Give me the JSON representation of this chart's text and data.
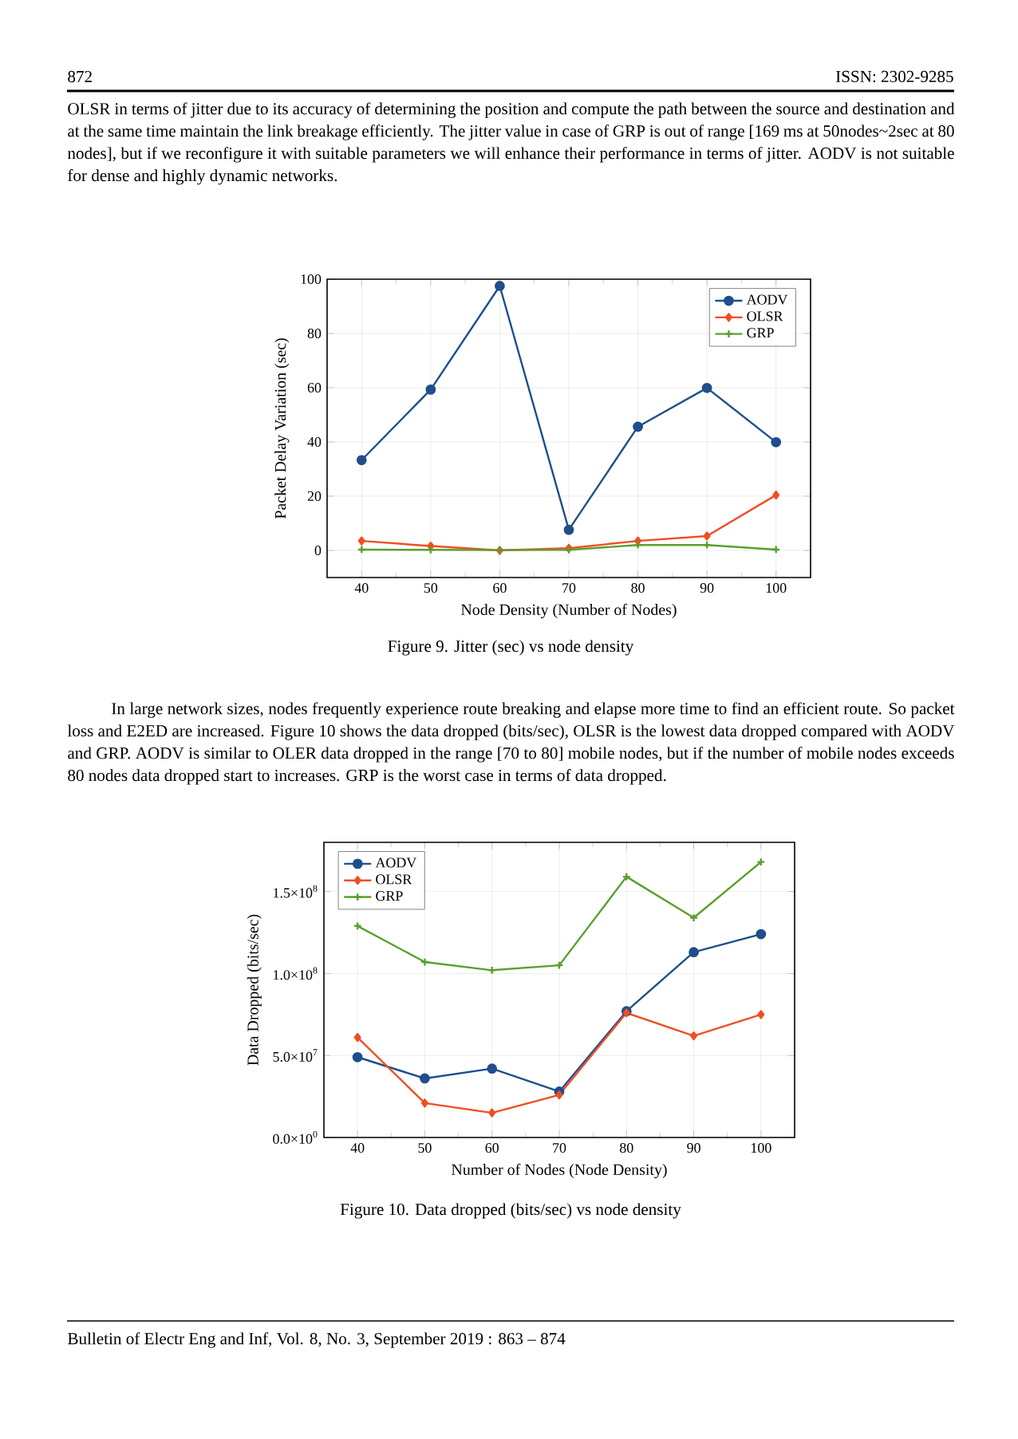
{
  "chart_data": [
    {
      "type": "line",
      "xlabel": "Node Density (Number of Nodes)",
      "ylabel": "Packet Delay Variation (sec)",
      "x": [
        40,
        50,
        60,
        70,
        80,
        90,
        100
      ],
      "series": [
        {
          "name": "AODV",
          "color": "#1f4e8c",
          "marker": "circle",
          "values": [
            33.3,
            59.3,
            97.5,
            7.6,
            45.6,
            59.9,
            39.9
          ]
        },
        {
          "name": "OLSR",
          "color": "#f04e23",
          "marker": "diamond",
          "values": [
            3.5,
            1.6,
            0,
            0.8,
            3.5,
            5.3,
            20.4
          ]
        },
        {
          "name": "GRP",
          "color": "#5aa02c",
          "marker": "cross",
          "values": [
            0.3,
            0.2,
            0.1,
            0.2,
            2,
            2,
            0.3
          ]
        }
      ],
      "xlim": [
        35,
        105
      ],
      "ylim": [
        -10,
        100
      ],
      "xticks": [
        40,
        50,
        60,
        70,
        80,
        90,
        100
      ],
      "yticks": [
        0,
        20,
        40,
        60,
        80,
        100
      ],
      "grid": true,
      "legend": "top right",
      "annotations": [
        "872",
        "ISSN: 2302-9285",
        "OLSR in terms of jitter due to its accuracy of determining the position and compute the path between the source and destination and at the same time maintain the link breakage efficiently. The jitter value in case of GRP is out of range [169 ms at 50nodes~2sec at 80 nodes], but if we reconfigure it with suitable parameters we will enhance their performance in terms of jitter. AODV is not suitable for dense and highly dynamic networks.",
        "Figure 9. Jitter (sec) vs node density"
      ]
    },
    {
      "type": "line",
      "xlabel": "Number of Nodes (Node Density)",
      "ylabel": "Data Dropped (bits/sec)",
      "x": [
        40,
        50,
        60,
        70,
        80,
        90,
        100
      ],
      "series": [
        {
          "name": "AODV",
          "color": "#1f4e8c",
          "marker": "circle",
          "values": [
            49000000,
            36000000,
            42000000,
            28000000,
            77000000,
            113000000,
            124000000
          ]
        },
        {
          "name": "OLSR",
          "color": "#f04e23",
          "marker": "diamond",
          "values": [
            61000000,
            21000000,
            15000000,
            26000000,
            76000000,
            62000000,
            75000000
          ]
        },
        {
          "name": "GRP",
          "color": "#5aa02c",
          "marker": "cross",
          "values": [
            129000000,
            107000000,
            102000000,
            105000000,
            159000000,
            134000000,
            168000000
          ]
        }
      ],
      "xlim": [
        35,
        105
      ],
      "ylim": [
        0,
        180000000
      ],
      "xticks": [
        40,
        50,
        60,
        70,
        80,
        90,
        100
      ],
      "yticks": [
        {
          "value": 0,
          "label": "0.0×10$^{0}$"
        },
        {
          "value": 50000000,
          "label": "5.0×10$^{7}$"
        },
        {
          "value": 100000000,
          "label": "1.0×10$^{8}$"
        },
        {
          "value": 150000000,
          "label": "1.5×10$^{8}$"
        }
      ],
      "grid": true,
      "legend": "top left",
      "annotations": [
        "In large network sizes, nodes frequently experience route breaking and elapse more time to find an efficient route. So packet loss and E2ED are increased. Figure 10 shows the data dropped (bits/sec), OLSR is the lowest data dropped compared with AODV and GRP. AODV is similar to OLER data dropped in the range [70 to 80] mobile nodes, but if the number of mobile nodes exceeds 80 nodes data dropped start to increases. GRP is the worst case in terms of data dropped.",
        "Figure 10. Data dropped (bits/sec) vs node density",
        "Bulletin of Electr Eng and Inf, Vol. 8, No. 3, September 2019 :  863 – 874"
      ]
    }
  ]
}
